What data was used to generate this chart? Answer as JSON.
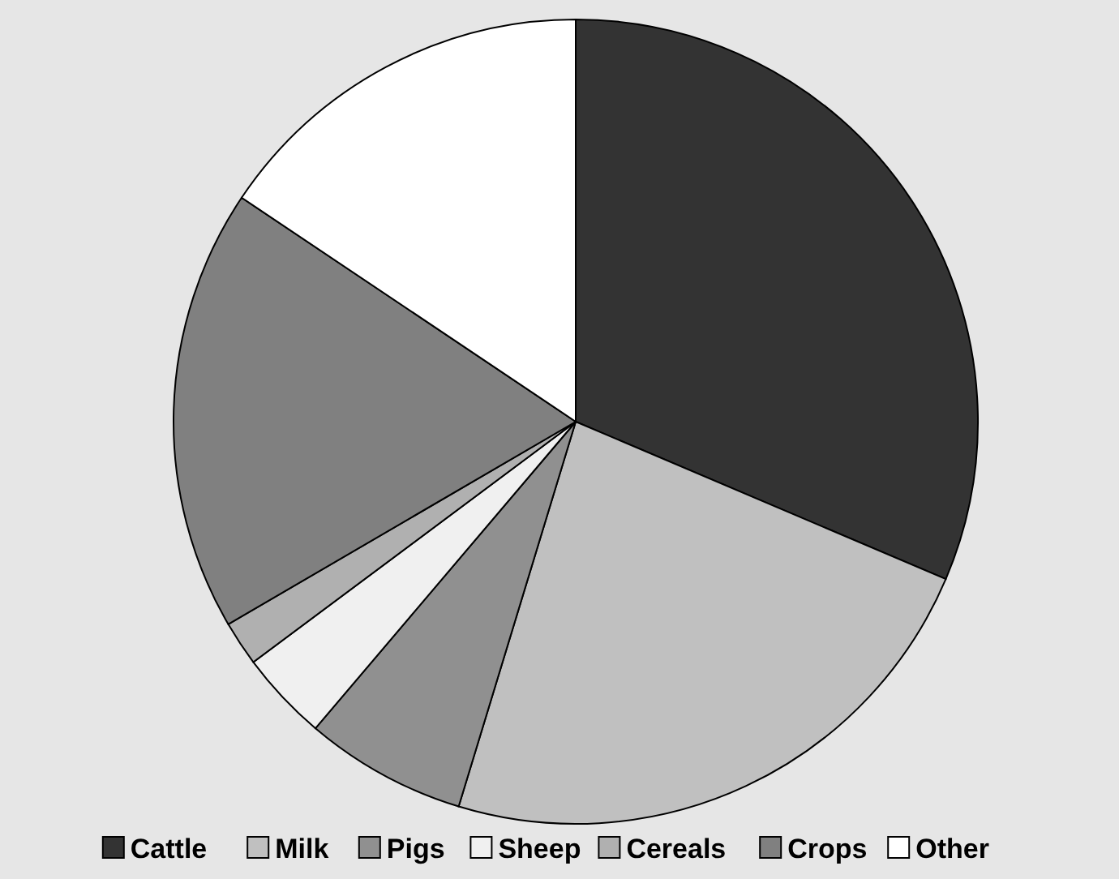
{
  "chart_data": {
    "type": "pie",
    "categories": [
      "Cattle",
      "Milk",
      "Pigs",
      "Sheep",
      "Cereals",
      "Crops",
      "Other"
    ],
    "values": [
      31.4,
      23.3,
      6.5,
      3.6,
      1.8,
      17.8,
      15.6
    ],
    "colors": [
      "#333333",
      "#c0c0c0",
      "#909090",
      "#f0f0f0",
      "#b0b0b0",
      "#808080",
      "#ffffff"
    ],
    "legend": "bottom"
  }
}
